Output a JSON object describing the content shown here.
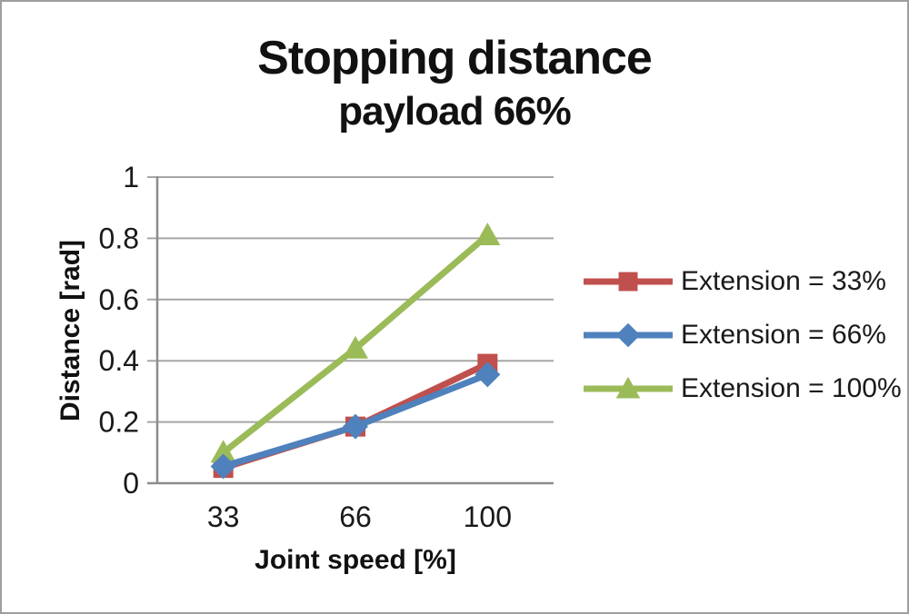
{
  "chart_data": {
    "type": "line",
    "title": "Stopping distance",
    "subtitle": "payload 66%",
    "xlabel": "Joint speed [%]",
    "ylabel": "Distance [rad]",
    "categories": [
      "33",
      "66",
      "100"
    ],
    "series": [
      {
        "name": "Extension = 33%",
        "color": "#C0504D",
        "marker": "square",
        "values": [
          0.05,
          0.185,
          0.39
        ]
      },
      {
        "name": "Extension = 66%",
        "color": "#4F81BD",
        "marker": "diamond",
        "values": [
          0.055,
          0.185,
          0.355
        ]
      },
      {
        "name": "Extension = 100%",
        "color": "#9BBB59",
        "marker": "triangle",
        "values": [
          0.1,
          0.44,
          0.81
        ]
      }
    ],
    "ylim": [
      0,
      1
    ],
    "yticks": [
      0,
      0.2,
      0.4,
      0.6,
      0.8,
      1
    ],
    "ytick_labels": [
      "0",
      "0.2",
      "0.4",
      "0.6",
      "0.8",
      "1"
    ],
    "grid": "horizontal",
    "legend_position": "right",
    "draw_order": [
      0,
      2,
      1
    ],
    "colors": {
      "gridline": "#a6a6a6",
      "axis": "#8c8c8c",
      "text": "#1a1a1a",
      "background": "#ffffff",
      "frame_border": "#9e9e9e"
    }
  }
}
